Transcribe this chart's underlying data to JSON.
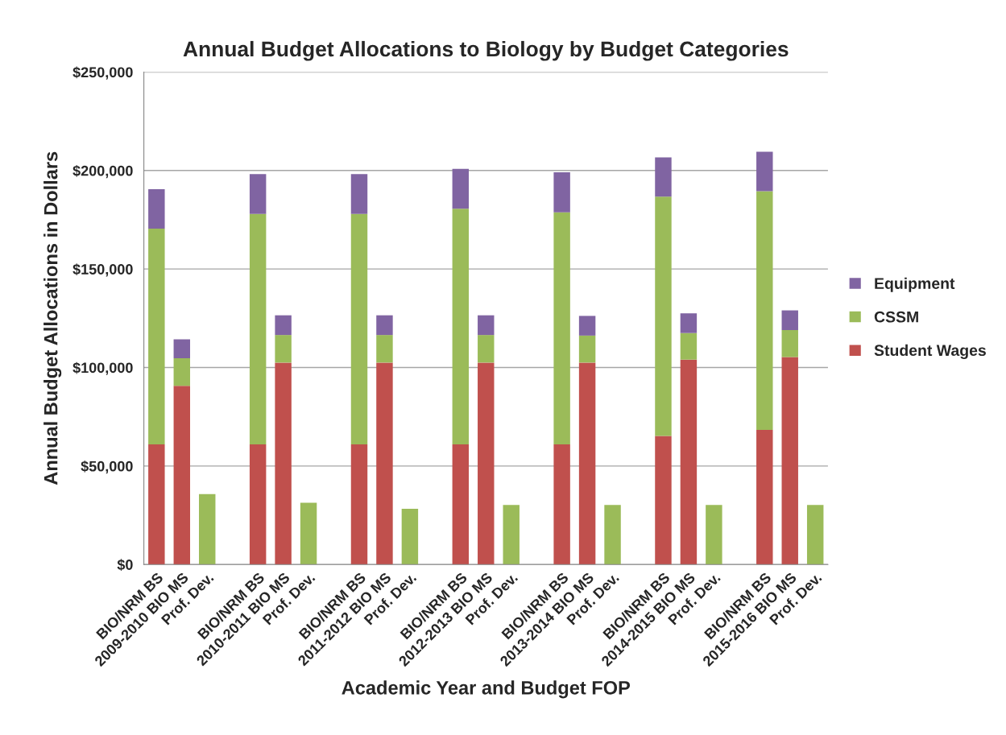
{
  "chart_data": {
    "type": "bar",
    "stacked": true,
    "title": "Annual Budget Allocations to Biology by Budget Categories",
    "xlabel": "Academic Year and Budget FOP",
    "ylabel": "Annual Budget Allocations in Dollars",
    "categories": [
      "BIO/NRM BS",
      "2009-2010 BIO MS",
      "Prof. Dev.",
      null,
      "BIO/NRM BS",
      "2010-2011 BIO MS",
      "Prof. Dev.",
      null,
      "BIO/NRM BS",
      "2011-2012 BIO MS",
      "Prof. Dev.",
      null,
      "BIO/NRM BS",
      "2012-2013 BIO MS",
      "Prof. Dev.",
      null,
      "BIO/NRM BS",
      "2013-2014 BIO MS",
      "Prof. Dev.",
      null,
      "BIO/NRM BS",
      "2014-2015 BIO MS",
      "Prof. Dev.",
      null,
      "BIO/NRM BS",
      "2015-2016 BIO MS",
      "Prof. Dev."
    ],
    "series": [
      {
        "name": "Student Wages",
        "color": "#c0504d",
        "values": [
          61000,
          90700,
          null,
          null,
          61000,
          102500,
          null,
          null,
          61000,
          102500,
          null,
          null,
          61000,
          102500,
          null,
          null,
          61000,
          102500,
          null,
          null,
          65300,
          104000,
          null,
          null,
          68300,
          105300,
          null
        ]
      },
      {
        "name": "CSSM",
        "color": "#9bbb59",
        "values": [
          109500,
          14000,
          35700,
          null,
          117000,
          14000,
          31300,
          null,
          117000,
          14000,
          28300,
          null,
          119600,
          14000,
          30200,
          null,
          117800,
          13700,
          30200,
          null,
          121400,
          13500,
          30200,
          null,
          121200,
          13700,
          30200
        ]
      },
      {
        "name": "Equipment",
        "color": "#8064a2",
        "values": [
          20000,
          9600,
          null,
          null,
          20200,
          10000,
          null,
          null,
          20200,
          10000,
          null,
          null,
          20200,
          10000,
          null,
          null,
          20300,
          10000,
          null,
          null,
          20000,
          10000,
          null,
          null,
          20000,
          10000,
          null
        ]
      }
    ],
    "ylim": [
      0,
      250000
    ],
    "yticks": [
      {
        "value": 0,
        "label": "$0"
      },
      {
        "value": 50000,
        "label": "$50,000"
      },
      {
        "value": 100000,
        "label": "$100,000"
      },
      {
        "value": 150000,
        "label": "$150,000"
      },
      {
        "value": 200000,
        "label": "$200,000"
      },
      {
        "value": 250000,
        "label": "$250,000"
      }
    ],
    "grid": "y",
    "legend": "right"
  }
}
